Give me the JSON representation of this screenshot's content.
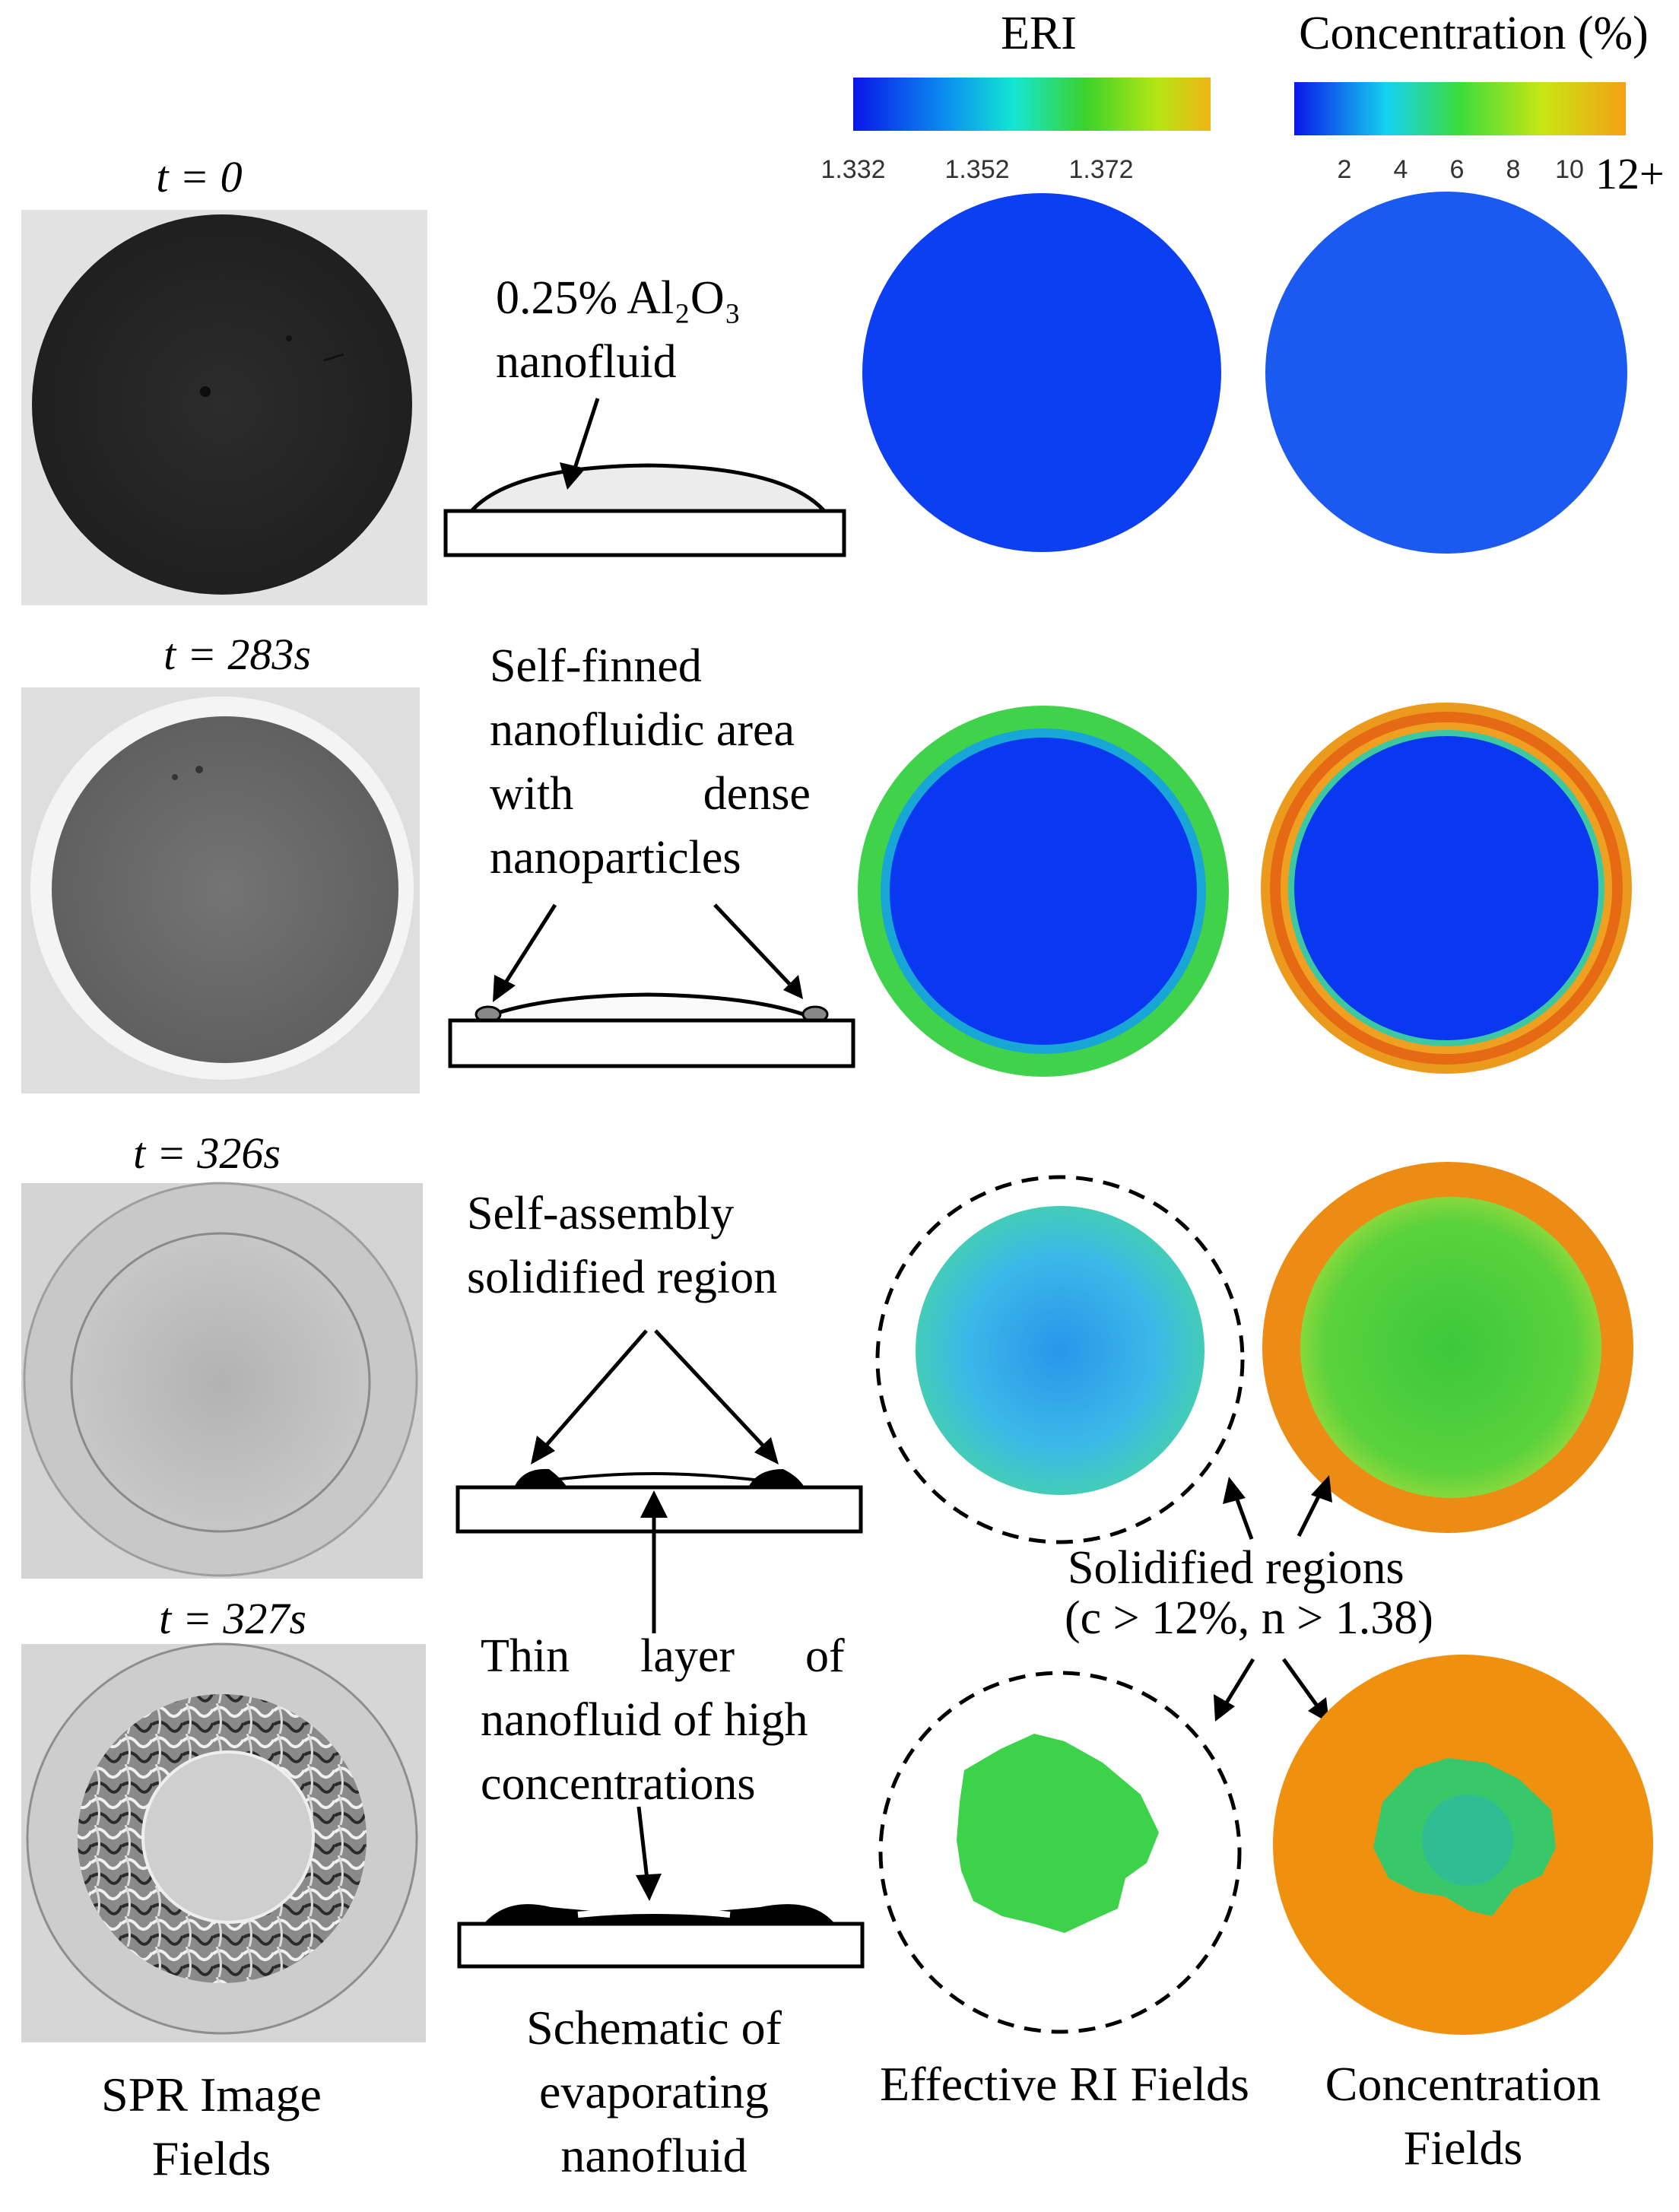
{
  "colorbars": {
    "eri": {
      "title": "ERI",
      "ticks": [
        "1.332",
        "1.352",
        "1.372"
      ]
    },
    "concentration": {
      "title": "Concentration (%)",
      "ticks": [
        "2",
        "4",
        "6",
        "8",
        "10"
      ],
      "overflow_label": "12+"
    }
  },
  "rows": [
    {
      "time": "t = 0",
      "desc_lines": [
        "0.25%  Al₂O₃",
        "nanofluid"
      ]
    },
    {
      "time": "t = 283s",
      "desc_lines": [
        "Self-finned",
        "nanofluidic area",
        "with           dense",
        "nanoparticles"
      ]
    },
    {
      "time": "t = 326s",
      "desc_lines": [
        "Self-assembly",
        "solidified region"
      ]
    },
    {
      "time": "t = 327s",
      "desc_lines": [
        "Thin      layer      of",
        "nanofluid of high",
        "concentrations"
      ]
    }
  ],
  "annotation": {
    "line1": "Solidified regions",
    "line2": "(c > 12%, n > 1.38)"
  },
  "captions": {
    "spr": [
      "SPR Image",
      "Fields"
    ],
    "schematic": [
      "Schematic of",
      "evaporating",
      "nanofluid"
    ],
    "eri": [
      "Effective RI Fields"
    ],
    "concentration": [
      "Concentration",
      "Fields"
    ]
  },
  "colors": {
    "field_blue": "#0a3cf0",
    "field_green": "#3cd24a",
    "field_orange": "#f08c14",
    "field_cyan": "#3cc8e6"
  }
}
